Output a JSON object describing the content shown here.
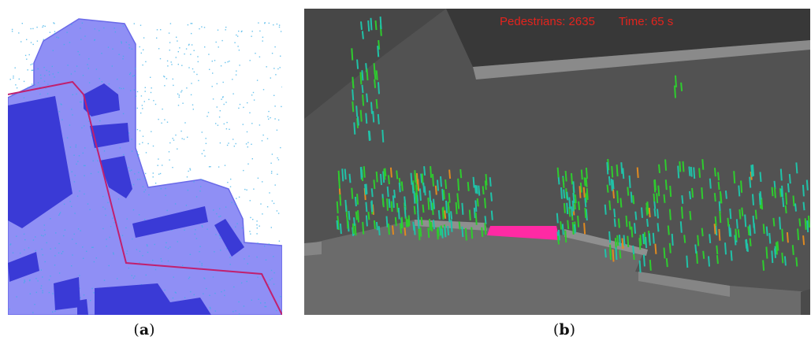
{
  "panels": {
    "a": {
      "caption_prefix": "(",
      "caption_letter": "a",
      "caption_suffix": ")"
    },
    "b": {
      "caption_prefix": "(",
      "caption_letter": "b",
      "caption_suffix": ")"
    }
  },
  "hud": {
    "pedestrians": "Pedestrians: 2635",
    "time": "Time: 65 s"
  },
  "colors": {
    "area": "#8f8ff5",
    "building": "#3a3ad6",
    "route": "#c0206f",
    "scene_bg": "#525252",
    "wall_dark": "#3e3e3e",
    "ground": "#6f6f6f",
    "exit": "#ff2aa4",
    "ped_green": "#2ecc2e",
    "ped_teal": "#20c2a8",
    "ped_orange": "#e08a20",
    "hud_text": "#e3231d"
  },
  "icons": {
    "map": "site-map-icon",
    "simulation": "crowd-simulation-icon"
  }
}
